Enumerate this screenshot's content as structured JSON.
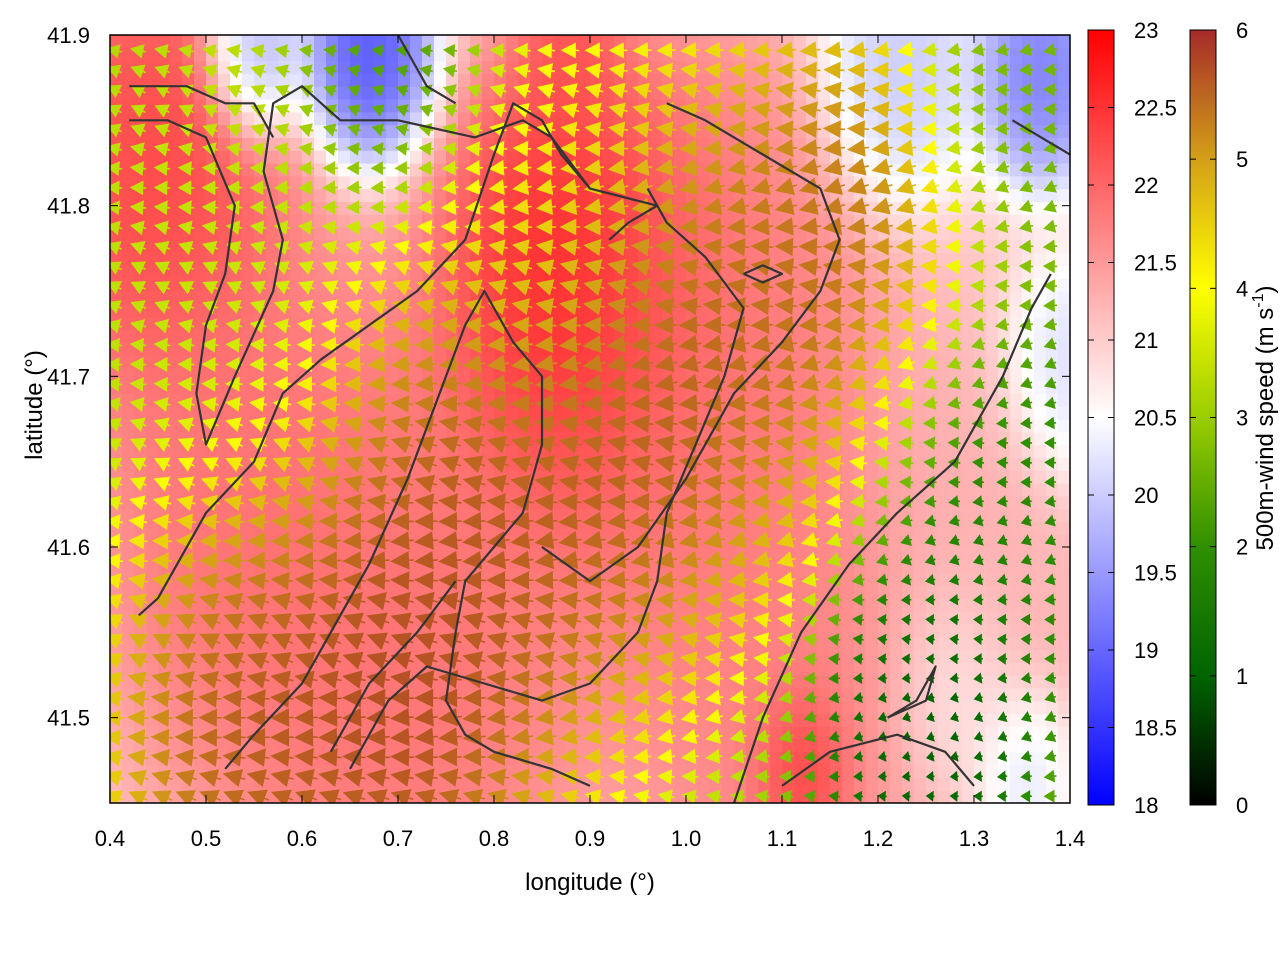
{
  "chart_data": {
    "type": "heatmap",
    "title": "",
    "xlabel": "longitude (°)",
    "ylabel": "latitude (°)",
    "xlim": [
      0.4,
      1.4
    ],
    "ylim": [
      41.45,
      41.9
    ],
    "xticks": [
      {
        "value": 0.4,
        "label": "0.4"
      },
      {
        "value": 0.5,
        "label": "0.5"
      },
      {
        "value": 0.6,
        "label": "0.6"
      },
      {
        "value": 0.7,
        "label": "0.7"
      },
      {
        "value": 0.8,
        "label": "0.8"
      },
      {
        "value": 0.9,
        "label": "0.9"
      },
      {
        "value": 1.0,
        "label": "1.0"
      },
      {
        "value": 1.1,
        "label": "1.1"
      },
      {
        "value": 1.2,
        "label": "1.2"
      },
      {
        "value": 1.3,
        "label": "1.3"
      },
      {
        "value": 1.4,
        "label": "1.4"
      }
    ],
    "yticks": [
      {
        "value": 41.5,
        "label": "41.5"
      },
      {
        "value": 41.6,
        "label": "41.6"
      },
      {
        "value": 41.7,
        "label": "41.7"
      },
      {
        "value": 41.8,
        "label": "41.8"
      },
      {
        "value": 41.9,
        "label": "41.9"
      }
    ],
    "grid": false,
    "temperature_colorbar": {
      "label": "",
      "range": [
        18,
        23
      ],
      "colors": [
        "#0000ff",
        "#ffffff",
        "#ff0000"
      ],
      "ticks": [
        {
          "value": 18,
          "label": "18"
        },
        {
          "value": 18.5,
          "label": "18.5"
        },
        {
          "value": 19,
          "label": "19"
        },
        {
          "value": 19.5,
          "label": "19.5"
        },
        {
          "value": 20,
          "label": "20"
        },
        {
          "value": 20.5,
          "label": "20.5"
        },
        {
          "value": 21,
          "label": "21"
        },
        {
          "value": 21.5,
          "label": "21.5"
        },
        {
          "value": 22,
          "label": "22"
        },
        {
          "value": 22.5,
          "label": "22.5"
        },
        {
          "value": 23,
          "label": "23"
        }
      ]
    },
    "wind_colorbar": {
      "label_main": "500m-wind speed (m s",
      "label_sup": "-1",
      "label_end": ")",
      "range": [
        0,
        6
      ],
      "colors": [
        "#000000",
        "#006400",
        "#2f8f00",
        "#9acd00",
        "#ffff00",
        "#d4a017",
        "#a52a2a"
      ],
      "ticks": [
        {
          "value": 0,
          "label": "0"
        },
        {
          "value": 1,
          "label": "1"
        },
        {
          "value": 2,
          "label": "2"
        },
        {
          "value": 3,
          "label": "3"
        },
        {
          "value": 4,
          "label": "4"
        },
        {
          "value": 5,
          "label": "5"
        },
        {
          "value": 6,
          "label": "6"
        }
      ]
    },
    "temperature_field": [
      {
        "lon": 0.88,
        "lat": 41.75,
        "value": 23.0,
        "spread": 0.1
      },
      {
        "lon": 0.45,
        "lat": 41.82,
        "value": 22.5,
        "spread": 0.1
      },
      {
        "lon": 0.55,
        "lat": 41.62,
        "value": 22.0,
        "spread": 0.12
      },
      {
        "lon": 0.7,
        "lat": 41.55,
        "value": 22.0,
        "spread": 0.15
      },
      {
        "lon": 1.0,
        "lat": 41.7,
        "value": 22.0,
        "spread": 0.15
      },
      {
        "lon": 1.1,
        "lat": 41.52,
        "value": 21.8,
        "spread": 0.12
      },
      {
        "lon": 1.12,
        "lat": 41.47,
        "value": 22.8,
        "spread": 0.04
      },
      {
        "lon": 0.88,
        "lat": 41.89,
        "value": 22.3,
        "spread": 0.04
      },
      {
        "lon": 1.3,
        "lat": 41.58,
        "value": 21.3,
        "spread": 0.1
      },
      {
        "lon": 0.67,
        "lat": 41.89,
        "value": 18.5,
        "spread": 0.05
      },
      {
        "lon": 0.55,
        "lat": 41.89,
        "value": 19.3,
        "spread": 0.04
      },
      {
        "lon": 1.37,
        "lat": 41.88,
        "value": 19.0,
        "spread": 0.05
      },
      {
        "lon": 1.22,
        "lat": 41.88,
        "value": 19.8,
        "spread": 0.06
      },
      {
        "lon": 1.4,
        "lat": 41.7,
        "value": 20.0,
        "spread": 0.05
      },
      {
        "lon": 1.28,
        "lat": 41.52,
        "value": 20.5,
        "spread": 0.05
      },
      {
        "lon": 1.35,
        "lat": 41.47,
        "value": 20.0,
        "spread": 0.04
      }
    ],
    "wind_field": {
      "speed_centers": [
        {
          "lon": 0.78,
          "lat": 41.62,
          "speed": 6.0,
          "spread": 0.14
        },
        {
          "lon": 0.95,
          "lat": 41.7,
          "speed": 6.0,
          "spread": 0.13
        },
        {
          "lon": 0.55,
          "lat": 41.5,
          "speed": 6.0,
          "spread": 0.12
        },
        {
          "lon": 1.15,
          "lat": 41.76,
          "speed": 5.8,
          "spread": 0.12
        },
        {
          "lon": 0.7,
          "lat": 41.5,
          "speed": 6.0,
          "spread": 0.1
        },
        {
          "lon": 0.5,
          "lat": 41.78,
          "speed": 3.5,
          "spread": 0.12
        },
        {
          "lon": 0.85,
          "lat": 41.8,
          "speed": 4.0,
          "spread": 0.1
        },
        {
          "lon": 1.25,
          "lat": 41.5,
          "speed": 0.5,
          "spread": 0.08
        },
        {
          "lon": 1.3,
          "lat": 41.62,
          "speed": 1.5,
          "spread": 0.1
        },
        {
          "lon": 0.7,
          "lat": 41.89,
          "speed": 2.0,
          "spread": 0.08
        },
        {
          "lon": 1.35,
          "lat": 41.86,
          "speed": 2.5,
          "spread": 0.08
        }
      ],
      "background_speed": 3.0,
      "west_direction_deg": 165,
      "east_direction_deg": 190,
      "spacing_lon": 0.025,
      "spacing_lat": 0.0115
    },
    "contours": [
      [
        [
          0.42,
          41.85
        ],
        [
          0.46,
          41.85
        ],
        [
          0.5,
          41.84
        ],
        [
          0.53,
          41.8
        ],
        [
          0.52,
          41.76
        ],
        [
          0.5,
          41.73
        ],
        [
          0.49,
          41.69
        ],
        [
          0.5,
          41.66
        ],
        [
          0.53,
          41.7
        ],
        [
          0.57,
          41.75
        ],
        [
          0.58,
          41.78
        ],
        [
          0.56,
          41.82
        ],
        [
          0.57,
          41.86
        ],
        [
          0.6,
          41.87
        ],
        [
          0.62,
          41.86
        ],
        [
          0.64,
          41.85
        ],
        [
          0.7,
          41.85
        ],
        [
          0.78,
          41.84
        ],
        [
          0.83,
          41.85
        ],
        [
          0.86,
          41.84
        ],
        [
          0.9,
          41.81
        ],
        [
          0.97,
          41.8
        ],
        [
          0.94,
          41.79
        ],
        [
          0.92,
          41.78
        ]
      ],
      [
        [
          0.42,
          41.87
        ],
        [
          0.48,
          41.87
        ],
        [
          0.52,
          41.86
        ],
        [
          0.55,
          41.86
        ],
        [
          0.57,
          41.84
        ]
      ],
      [
        [
          0.43,
          41.56
        ],
        [
          0.45,
          41.57
        ],
        [
          0.5,
          41.62
        ],
        [
          0.55,
          41.65
        ],
        [
          0.58,
          41.69
        ],
        [
          0.62,
          41.71
        ],
        [
          0.67,
          41.73
        ],
        [
          0.72,
          41.75
        ],
        [
          0.77,
          41.78
        ],
        [
          0.8,
          41.83
        ],
        [
          0.82,
          41.86
        ],
        [
          0.85,
          41.85
        ],
        [
          0.87,
          41.83
        ],
        [
          0.9,
          41.81
        ]
      ],
      [
        [
          0.52,
          41.47
        ],
        [
          0.55,
          41.49
        ],
        [
          0.6,
          41.52
        ],
        [
          0.63,
          41.55
        ],
        [
          0.67,
          41.59
        ],
        [
          0.71,
          41.64
        ],
        [
          0.73,
          41.67
        ],
        [
          0.75,
          41.7
        ],
        [
          0.77,
          41.73
        ],
        [
          0.79,
          41.75
        ],
        [
          0.82,
          41.72
        ],
        [
          0.85,
          41.7
        ],
        [
          0.85,
          41.66
        ],
        [
          0.83,
          41.62
        ],
        [
          0.8,
          41.6
        ],
        [
          0.77,
          41.58
        ],
        [
          0.76,
          41.55
        ],
        [
          0.75,
          41.51
        ],
        [
          0.77,
          41.49
        ],
        [
          0.8,
          41.48
        ],
        [
          0.86,
          41.47
        ],
        [
          0.9,
          41.46
        ]
      ],
      [
        [
          0.63,
          41.48
        ],
        [
          0.67,
          41.52
        ],
        [
          0.72,
          41.55
        ],
        [
          0.76,
          41.58
        ]
      ],
      [
        [
          0.65,
          41.47
        ],
        [
          0.69,
          41.51
        ],
        [
          0.73,
          41.53
        ],
        [
          0.79,
          41.52
        ],
        [
          0.85,
          41.51
        ],
        [
          0.9,
          41.52
        ],
        [
          0.95,
          41.55
        ],
        [
          0.97,
          41.58
        ],
        [
          0.98,
          41.62
        ],
        [
          1.01,
          41.66
        ],
        [
          1.04,
          41.7
        ],
        [
          1.06,
          41.74
        ],
        [
          1.02,
          41.77
        ],
        [
          0.98,
          41.79
        ],
        [
          0.96,
          41.81
        ]
      ],
      [
        [
          0.85,
          41.6
        ],
        [
          0.9,
          41.58
        ],
        [
          0.95,
          41.6
        ],
        [
          1.0,
          41.64
        ],
        [
          1.05,
          41.69
        ],
        [
          1.1,
          41.72
        ],
        [
          1.14,
          41.75
        ],
        [
          1.16,
          41.78
        ],
        [
          1.14,
          41.81
        ],
        [
          1.08,
          41.83
        ],
        [
          1.02,
          41.85
        ],
        [
          0.98,
          41.86
        ]
      ],
      [
        [
          1.06,
          41.76
        ],
        [
          1.08,
          41.755
        ],
        [
          1.1,
          41.76
        ],
        [
          1.08,
          41.765
        ],
        [
          1.06,
          41.76
        ]
      ],
      [
        [
          1.05,
          41.45
        ],
        [
          1.08,
          41.5
        ],
        [
          1.12,
          41.55
        ],
        [
          1.17,
          41.59
        ],
        [
          1.22,
          41.62
        ],
        [
          1.28,
          41.65
        ],
        [
          1.33,
          41.7
        ],
        [
          1.36,
          41.74
        ],
        [
          1.38,
          41.76
        ]
      ],
      [
        [
          1.1,
          41.46
        ],
        [
          1.15,
          41.48
        ],
        [
          1.22,
          41.49
        ],
        [
          1.27,
          41.48
        ],
        [
          1.3,
          41.46
        ]
      ],
      [
        [
          1.21,
          41.5
        ],
        [
          1.24,
          41.51
        ],
        [
          1.26,
          41.53
        ],
        [
          1.25,
          41.51
        ],
        [
          1.21,
          41.5
        ]
      ],
      [
        [
          1.34,
          41.85
        ],
        [
          1.37,
          41.84
        ],
        [
          1.4,
          41.83
        ]
      ],
      [
        [
          0.7,
          41.9
        ],
        [
          0.73,
          41.87
        ],
        [
          0.76,
          41.86
        ]
      ]
    ]
  }
}
